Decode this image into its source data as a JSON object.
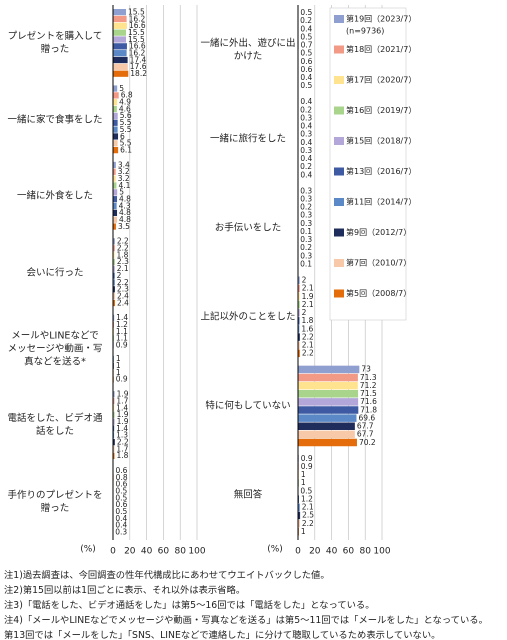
{
  "chart_data": {
    "type": "bar",
    "orientation": "horizontal",
    "categories": [
      "プレゼントを購入して贈った",
      "一緒に家で食事をした",
      "一緒に外食をした",
      "会いに行った",
      "メールやLINEなどでメッセージや動画・写真などを送る*",
      "電話をした、ビデオ通話をした",
      "手作りのプレゼントを贈った",
      "一緒に外出、遊びに出かけた",
      "一緒に旅行をした",
      "お手伝いをした",
      "上記以外のことをした",
      "特に何もしていない",
      "無回答"
    ],
    "series": [
      {
        "name": "第19回（2023/7）",
        "color": "#8f9fd0",
        "values": [
          15.5,
          5.0,
          3.4,
          2.2,
          1.4,
          1.9,
          0.6,
          0.5,
          0.4,
          0.3,
          2.0,
          73.0,
          0.9
        ]
      },
      {
        "name": "第18回（2021/7）",
        "color": "#f29a86",
        "values": [
          16.2,
          6.8,
          3.2,
          2.2,
          1.2,
          1.7,
          0.8,
          0.2,
          0.2,
          0.3,
          2.1,
          71.3,
          0.9
        ]
      },
      {
        "name": "第17回（2020/7）",
        "color": "#ffe38f",
        "values": [
          16.6,
          4.9,
          3.2,
          1.8,
          1.1,
          1.4,
          0.6,
          0.4,
          0.3,
          0.2,
          1.9,
          71.2,
          1.0
        ]
      },
      {
        "name": "第16回（2019/7）",
        "color": "#a8d48c",
        "values": [
          15.5,
          4.6,
          4.1,
          2.3,
          1.1,
          1.9,
          0.5,
          0.5,
          0.4,
          0.3,
          2.1,
          71.5,
          1.0
        ]
      },
      {
        "name": "第15回（2018/7）",
        "color": "#b3a6d8",
        "values": [
          15.5,
          5.6,
          5.0,
          2.1,
          0.9,
          1.9,
          0.5,
          0.7,
          0.3,
          0.3,
          2.0,
          71.6,
          0.5
        ]
      },
      {
        "name": "第13回（2016/7）",
        "color": "#3d5aa3",
        "values": [
          16.6,
          5.5,
          4.8,
          2.0,
          null,
          1.4,
          0.6,
          0.5,
          0.4,
          0.1,
          1.8,
          71.8,
          1.2
        ]
      },
      {
        "name": "第11回（2014/7）",
        "color": "#5b88c6",
        "values": [
          16.2,
          5.5,
          4.3,
          2.2,
          1.0,
          1.3,
          0.5,
          0.6,
          0.3,
          0.3,
          1.6,
          69.6,
          2.1
        ]
      },
      {
        "name": "第9回（2012/7）",
        "color": "#1f2d5c",
        "values": [
          17.4,
          6.0,
          4.8,
          2.3,
          1.0,
          2.2,
          0.4,
          0.6,
          0.4,
          0.2,
          2.2,
          67.7,
          2.5
        ]
      },
      {
        "name": "第7回（2010/7）",
        "color": "#f8c9a8",
        "values": [
          17.6,
          5.5,
          4.8,
          2.4,
          1.0,
          1.7,
          0.4,
          0.4,
          0.2,
          0.3,
          2.1,
          67.7,
          2.2
        ]
      },
      {
        "name": "第5回（2008/7）",
        "color": "#e46c0a",
        "values": [
          18.2,
          6.1,
          3.5,
          2.4,
          0.9,
          1.8,
          0.3,
          0.5,
          0.4,
          0.1,
          2.2,
          70.2,
          1.0
        ]
      }
    ],
    "legend_note": "(n=9736)",
    "x_label": "(%)",
    "xlim": [
      0,
      100
    ],
    "xticks": [
      0,
      20,
      40,
      60,
      80,
      100
    ],
    "grid": true,
    "notes": [
      "注1)過去調査は、今回調査の性年代構成比にあわせてウエイトバックした値。",
      "注2)第15回以前は1回ごとに表示、それ以外は表示省略。",
      "注3)「電話をした、ビデオ通話をした」は第5～16回では「電話をした」となっている。",
      "注4)「メールやLINEなどでメッセージや動画・写真などを送る」は第5～11回では「メールをした」となっている。",
      "第13回では「メールをした」「SNS、LINEなどで連絡した」に分けて聴取しているため表示していない。"
    ]
  }
}
